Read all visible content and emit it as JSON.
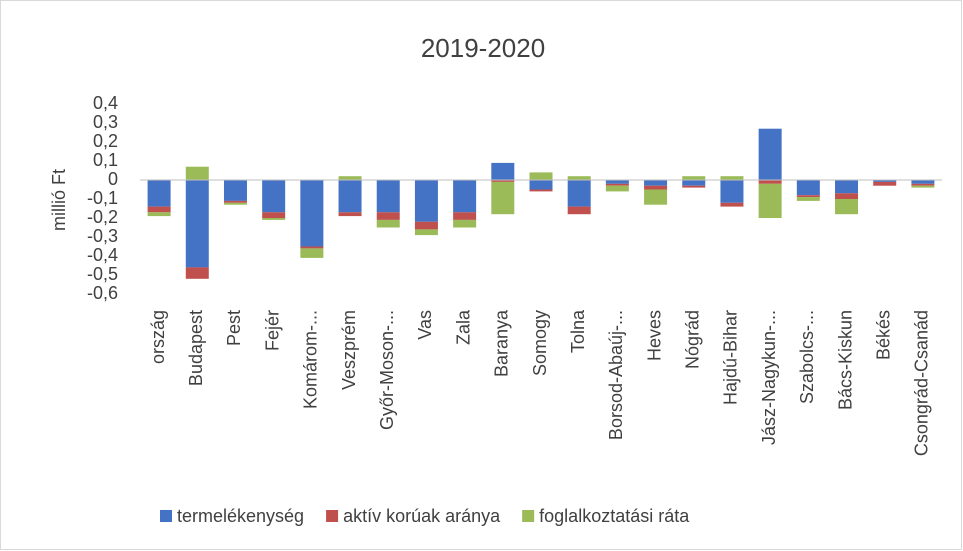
{
  "chart_data": {
    "type": "stacked-bar",
    "title": "2019-2020",
    "y_label": "millió Ft",
    "categories": [
      "ország",
      "Budapest",
      "Pest",
      "Fejér",
      "Komárom-...",
      "Veszprém",
      "Győr-Moson-...",
      "Vas",
      "Zala",
      "Baranya",
      "Somogy",
      "Tolna",
      "Borsod-Abaúj-...",
      "Heves",
      "Nógrád",
      "Hajdú-Bihar",
      "Jász-Nagykun-...",
      "Szabolcs-...",
      "Bács-Kiskun",
      "Békés",
      "Csongrád-Csanád"
    ],
    "series": [
      {
        "name": "termelékenység",
        "color": "#4472c4",
        "values": [
          -0.14,
          -0.46,
          -0.11,
          -0.17,
          -0.35,
          -0.17,
          -0.17,
          -0.22,
          -0.17,
          0.09,
          -0.05,
          -0.14,
          -0.02,
          -0.03,
          -0.03,
          -0.12,
          0.27,
          -0.08,
          -0.07,
          -0.01,
          -0.02
        ]
      },
      {
        "name": "aktív korúak aránya",
        "color": "#c0504d",
        "values": [
          -0.03,
          -0.06,
          -0.01,
          -0.03,
          -0.01,
          -0.02,
          -0.04,
          -0.04,
          -0.04,
          -0.01,
          -0.01,
          -0.04,
          -0.01,
          -0.02,
          -0.01,
          -0.02,
          -0.02,
          -0.01,
          -0.03,
          -0.02,
          -0.01
        ]
      },
      {
        "name": "foglalkoztatási ráta",
        "color": "#9bbb59",
        "values": [
          -0.02,
          0.07,
          -0.01,
          -0.01,
          -0.05,
          0.02,
          -0.04,
          -0.03,
          -0.04,
          -0.17,
          0.04,
          0.02,
          -0.03,
          -0.08,
          0.02,
          0.02,
          -0.18,
          -0.02,
          -0.08,
          0,
          -0.01
        ]
      }
    ],
    "ylim": [
      -0.6,
      0.4
    ],
    "yticks": [
      {
        "value": -0.6,
        "label": "-0,6"
      },
      {
        "value": -0.5,
        "label": "-0,5"
      },
      {
        "value": -0.4,
        "label": "-0,4"
      },
      {
        "value": -0.3,
        "label": "-0,3"
      },
      {
        "value": -0.2,
        "label": "-0,2"
      },
      {
        "value": -0.1,
        "label": "-0,1"
      },
      0,
      {
        "value": 0.1,
        "label": "0,1"
      },
      {
        "value": 0.2,
        "label": "0,2"
      },
      {
        "value": 0.3,
        "label": "0,3"
      },
      {
        "value": 0.4,
        "label": "0,4"
      }
    ],
    "grid": false,
    "legend": "bottom"
  }
}
